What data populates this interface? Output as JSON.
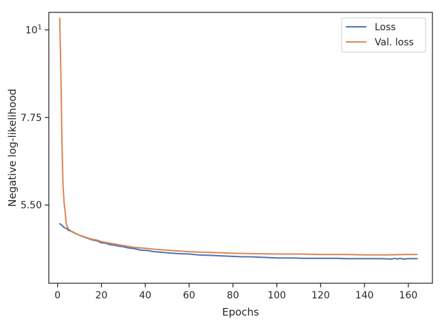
{
  "chart_data": {
    "type": "line",
    "title": "",
    "xlabel": "Epochs",
    "ylabel": "Negative log-likelihood",
    "xlim": [
      -4,
      171
    ],
    "ylim": [
      3.49,
      10.45
    ],
    "x_ticks": [
      0,
      20,
      40,
      60,
      80,
      100,
      120,
      140,
      160
    ],
    "x_tick_labels": [
      "0",
      "20",
      "40",
      "60",
      "80",
      "100",
      "120",
      "140",
      "160"
    ],
    "y_ticks": [
      5.5,
      7.75,
      10
    ],
    "y_tick_labels": [
      "5.50",
      "7.75",
      "10"
    ],
    "y_tick_superscript": [
      "",
      "",
      "1"
    ],
    "grid": false,
    "legend_position": "top-right",
    "series": [
      {
        "name": "Loss",
        "color": "#4c72b0",
        "x": [
          1,
          2,
          3,
          4,
          5,
          6,
          7,
          8,
          9,
          10,
          12,
          14,
          16,
          18,
          20,
          22,
          24,
          26,
          28,
          30,
          32,
          35,
          38,
          41,
          44,
          47,
          50,
          53,
          56,
          60,
          64,
          68,
          72,
          76,
          80,
          84,
          88,
          92,
          96,
          100,
          104,
          108,
          112,
          116,
          120,
          124,
          128,
          132,
          136,
          140,
          144,
          148,
          152,
          154,
          155,
          156,
          158,
          160,
          162,
          164
        ],
        "y": [
          5.02,
          4.98,
          4.92,
          4.9,
          4.85,
          4.83,
          4.8,
          4.77,
          4.75,
          4.72,
          4.68,
          4.64,
          4.6,
          4.58,
          4.53,
          4.52,
          4.48,
          4.47,
          4.44,
          4.43,
          4.4,
          4.38,
          4.34,
          4.33,
          4.3,
          4.29,
          4.27,
          4.26,
          4.25,
          4.24,
          4.22,
          4.21,
          4.2,
          4.19,
          4.18,
          4.17,
          4.17,
          4.16,
          4.15,
          4.14,
          4.14,
          4.14,
          4.13,
          4.13,
          4.13,
          4.13,
          4.13,
          4.12,
          4.12,
          4.12,
          4.12,
          4.12,
          4.11,
          4.13,
          4.11,
          4.13,
          4.11,
          4.12,
          4.12,
          4.12
        ]
      },
      {
        "name": "Val. loss",
        "color": "#dd8452",
        "x": [
          1,
          1.5,
          2,
          2.5,
          3,
          3.5,
          4,
          5,
          6,
          8,
          10,
          12,
          15,
          18,
          20,
          22,
          25,
          30,
          35,
          40,
          45,
          50,
          55,
          60,
          65,
          70,
          75,
          80,
          90,
          100,
          110,
          120,
          130,
          140,
          150,
          160,
          164
        ],
        "y": [
          10.3,
          8.9,
          7.1,
          6.0,
          5.55,
          5.3,
          5.0,
          4.88,
          4.84,
          4.78,
          4.72,
          4.69,
          4.63,
          4.6,
          4.56,
          4.54,
          4.51,
          4.46,
          4.41,
          4.39,
          4.36,
          4.34,
          4.32,
          4.3,
          4.29,
          4.28,
          4.27,
          4.26,
          4.25,
          4.24,
          4.24,
          4.23,
          4.23,
          4.22,
          4.22,
          4.23,
          4.23
        ]
      }
    ]
  }
}
